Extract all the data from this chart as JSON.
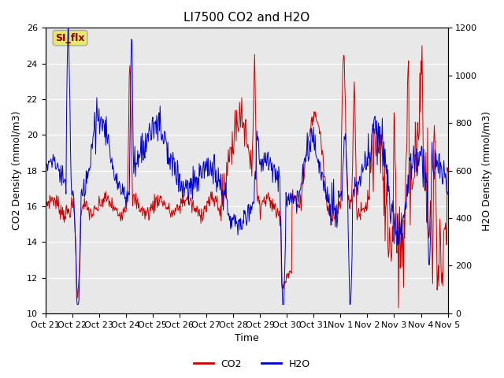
{
  "title": "LI7500 CO2 and H2O",
  "xlabel": "Time",
  "ylabel_left": "CO2 Density (mmol/m3)",
  "ylabel_right": "H2O Density (mmol/m3)",
  "ylim_left": [
    10,
    26
  ],
  "ylim_right": [
    0,
    1200
  ],
  "yticks_left": [
    10,
    12,
    14,
    16,
    18,
    20,
    22,
    24,
    26
  ],
  "yticks_right": [
    0,
    200,
    400,
    600,
    800,
    1000,
    1200
  ],
  "xtick_labels": [
    "Oct 21",
    "Oct 22",
    "Oct 23",
    "Oct 24",
    "Oct 25",
    "Oct 26",
    "Oct 27",
    "Oct 28",
    "Oct 29",
    "Oct 30",
    "Oct 31",
    "Nov 1",
    "Nov 2",
    "Nov 3",
    "Nov 4",
    "Nov 5"
  ],
  "co2_color": "#cc0000",
  "h2o_color": "#0000cc",
  "background_color": "#e8e8e8",
  "annotation_text": "SI_flx",
  "annotation_bg": "#e8e870",
  "annotation_border": "#aaaaaa",
  "legend_entries": [
    "CO2",
    "H2O"
  ],
  "title_fontsize": 11,
  "axis_label_fontsize": 9,
  "tick_fontsize": 8,
  "figsize": [
    6.4,
    4.8
  ],
  "dpi": 100
}
